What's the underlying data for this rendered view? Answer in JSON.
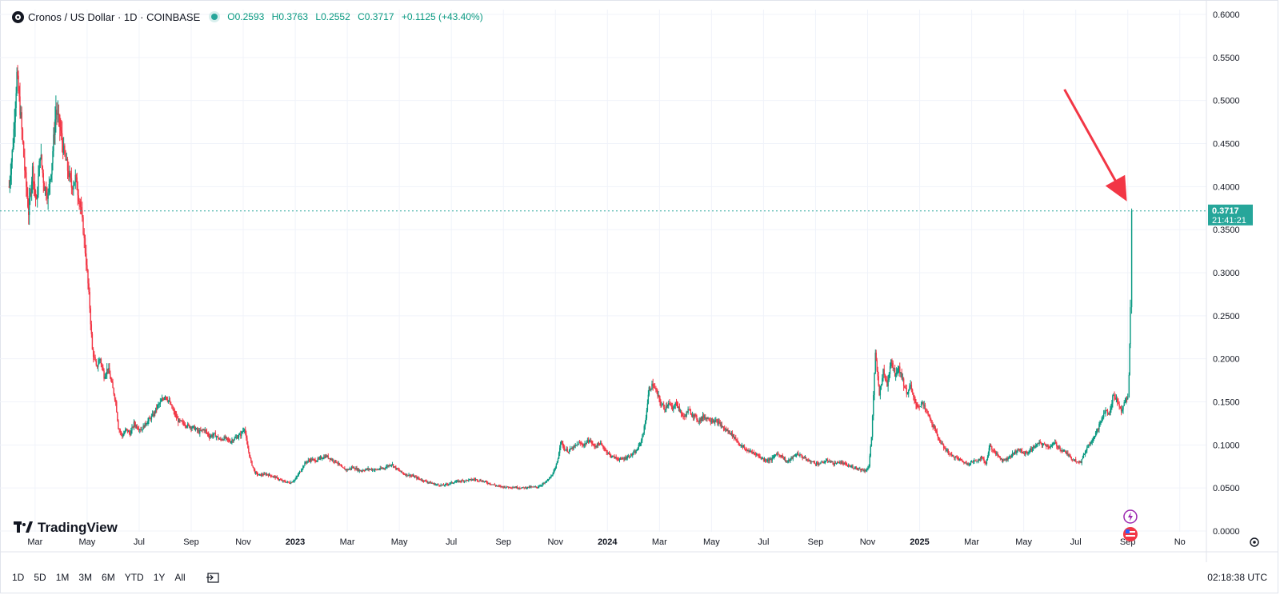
{
  "legend": {
    "symbol": "Cronos / US Dollar · 1D · COINBASE",
    "open": "O0.2593",
    "high": "H0.3763",
    "low": "L0.2552",
    "close": "C0.3717",
    "change": "+0.1125 (+43.40%)"
  },
  "price_label": {
    "value": "0.3717",
    "countdown": "21:41:21"
  },
  "logo": "TradingView",
  "ranges": [
    "1D",
    "5D",
    "1M",
    "3M",
    "6M",
    "YTD",
    "1Y",
    "All"
  ],
  "clock": "02:18:38 UTC",
  "colors": {
    "up": "#089981",
    "down": "#f23645",
    "price_line": "#26a69a",
    "arrow": "#f23645"
  },
  "chart_data": {
    "type": "candlestick",
    "title": "Cronos / US Dollar · 1D · COINBASE",
    "y_ticks": [
      "0.0000",
      "0.0500",
      "0.1000",
      "0.1500",
      "0.2000",
      "0.2500",
      "0.3000",
      "0.3500",
      "0.4000",
      "0.4500",
      "0.5000",
      "0.5500",
      "0.6000"
    ],
    "ylim": [
      0,
      0.6
    ],
    "x_ticks": [
      {
        "label": "Mar",
        "t": 1.0
      },
      {
        "label": "May",
        "t": 3.0
      },
      {
        "label": "Jul",
        "t": 5.0
      },
      {
        "label": "Sep",
        "t": 7.0
      },
      {
        "label": "Nov",
        "t": 9.0
      },
      {
        "label": "2023",
        "t": 11.0
      },
      {
        "label": "Mar",
        "t": 13.0
      },
      {
        "label": "May",
        "t": 15.0
      },
      {
        "label": "Jul",
        "t": 17.0
      },
      {
        "label": "Sep",
        "t": 19.0
      },
      {
        "label": "Nov",
        "t": 21.0
      },
      {
        "label": "2024",
        "t": 23.0
      },
      {
        "label": "Mar",
        "t": 25.0
      },
      {
        "label": "May",
        "t": 27.0
      },
      {
        "label": "Jul",
        "t": 29.0
      },
      {
        "label": "Sep",
        "t": 31.0
      },
      {
        "label": "Nov",
        "t": 33.0
      },
      {
        "label": "2025",
        "t": 35.0
      },
      {
        "label": "Mar",
        "t": 37.0
      },
      {
        "label": "May",
        "t": 39.0
      },
      {
        "label": "Jul",
        "t": 41.0
      },
      {
        "label": "Sep",
        "t": 43.0
      },
      {
        "label": "No",
        "t": 45.0
      }
    ],
    "time_axis": "months since 2022-01",
    "xlim": [
      0.02,
      45.1
    ],
    "series": [
      {
        "name": "CRO/USD close",
        "points": [
          [
            0.0,
            0.4
          ],
          [
            0.15,
            0.45
          ],
          [
            0.3,
            0.53
          ],
          [
            0.45,
            0.48
          ],
          [
            0.6,
            0.42
          ],
          [
            0.75,
            0.37
          ],
          [
            0.9,
            0.42
          ],
          [
            1.05,
            0.38
          ],
          [
            1.2,
            0.44
          ],
          [
            1.35,
            0.4
          ],
          [
            1.5,
            0.39
          ],
          [
            1.65,
            0.43
          ],
          [
            1.8,
            0.49
          ],
          [
            1.95,
            0.47
          ],
          [
            2.1,
            0.44
          ],
          [
            2.25,
            0.42
          ],
          [
            2.4,
            0.4
          ],
          [
            2.55,
            0.41
          ],
          [
            2.7,
            0.385
          ],
          [
            2.85,
            0.35
          ],
          [
            3.0,
            0.3
          ],
          [
            3.1,
            0.26
          ],
          [
            3.2,
            0.21
          ],
          [
            3.35,
            0.19
          ],
          [
            3.5,
            0.2
          ],
          [
            3.65,
            0.18
          ],
          [
            3.8,
            0.19
          ],
          [
            3.95,
            0.17
          ],
          [
            4.1,
            0.15
          ],
          [
            4.2,
            0.12
          ],
          [
            4.35,
            0.11
          ],
          [
            4.5,
            0.118
          ],
          [
            4.65,
            0.113
          ],
          [
            4.8,
            0.125
          ],
          [
            4.95,
            0.12
          ],
          [
            5.1,
            0.118
          ],
          [
            5.25,
            0.125
          ],
          [
            5.4,
            0.13
          ],
          [
            5.55,
            0.135
          ],
          [
            5.7,
            0.145
          ],
          [
            5.85,
            0.15
          ],
          [
            6.0,
            0.158
          ],
          [
            6.15,
            0.15
          ],
          [
            6.3,
            0.14
          ],
          [
            6.5,
            0.128
          ],
          [
            6.7,
            0.125
          ],
          [
            6.9,
            0.122
          ],
          [
            7.1,
            0.12
          ],
          [
            7.3,
            0.115
          ],
          [
            7.5,
            0.118
          ],
          [
            7.7,
            0.11
          ],
          [
            7.9,
            0.112
          ],
          [
            8.1,
            0.106
          ],
          [
            8.3,
            0.108
          ],
          [
            8.5,
            0.104
          ],
          [
            8.7,
            0.108
          ],
          [
            8.9,
            0.112
          ],
          [
            9.05,
            0.12
          ],
          [
            9.15,
            0.1
          ],
          [
            9.3,
            0.08
          ],
          [
            9.45,
            0.068
          ],
          [
            9.6,
            0.065
          ],
          [
            9.9,
            0.066
          ],
          [
            10.2,
            0.063
          ],
          [
            10.5,
            0.058
          ],
          [
            10.8,
            0.056
          ],
          [
            11.0,
            0.06
          ],
          [
            11.2,
            0.07
          ],
          [
            11.4,
            0.08
          ],
          [
            11.6,
            0.083
          ],
          [
            11.8,
            0.082
          ],
          [
            12.0,
            0.085
          ],
          [
            12.2,
            0.087
          ],
          [
            12.4,
            0.083
          ],
          [
            12.6,
            0.08
          ],
          [
            12.8,
            0.073
          ],
          [
            13.0,
            0.071
          ],
          [
            13.2,
            0.074
          ],
          [
            13.5,
            0.07
          ],
          [
            13.8,
            0.072
          ],
          [
            14.1,
            0.071
          ],
          [
            14.4,
            0.073
          ],
          [
            14.7,
            0.078
          ],
          [
            14.9,
            0.072
          ],
          [
            15.2,
            0.066
          ],
          [
            15.5,
            0.064
          ],
          [
            15.8,
            0.06
          ],
          [
            16.1,
            0.057
          ],
          [
            16.4,
            0.054
          ],
          [
            16.7,
            0.053
          ],
          [
            17.0,
            0.056
          ],
          [
            17.3,
            0.058
          ],
          [
            17.6,
            0.059
          ],
          [
            17.9,
            0.06
          ],
          [
            18.2,
            0.058
          ],
          [
            18.5,
            0.055
          ],
          [
            18.8,
            0.052
          ],
          [
            19.1,
            0.051
          ],
          [
            19.4,
            0.051
          ],
          [
            19.7,
            0.05
          ],
          [
            20.0,
            0.051
          ],
          [
            20.3,
            0.051
          ],
          [
            20.6,
            0.056
          ],
          [
            20.8,
            0.062
          ],
          [
            21.0,
            0.072
          ],
          [
            21.1,
            0.085
          ],
          [
            21.2,
            0.105
          ],
          [
            21.35,
            0.095
          ],
          [
            21.5,
            0.093
          ],
          [
            21.7,
            0.097
          ],
          [
            21.9,
            0.102
          ],
          [
            22.1,
            0.1
          ],
          [
            22.3,
            0.106
          ],
          [
            22.5,
            0.098
          ],
          [
            22.7,
            0.102
          ],
          [
            22.9,
            0.095
          ],
          [
            23.1,
            0.088
          ],
          [
            23.3,
            0.085
          ],
          [
            23.5,
            0.083
          ],
          [
            23.7,
            0.085
          ],
          [
            23.9,
            0.088
          ],
          [
            24.1,
            0.092
          ],
          [
            24.3,
            0.105
          ],
          [
            24.45,
            0.125
          ],
          [
            24.6,
            0.165
          ],
          [
            24.75,
            0.17
          ],
          [
            24.9,
            0.16
          ],
          [
            25.05,
            0.148
          ],
          [
            25.2,
            0.142
          ],
          [
            25.35,
            0.15
          ],
          [
            25.5,
            0.14
          ],
          [
            25.65,
            0.15
          ],
          [
            25.8,
            0.138
          ],
          [
            25.95,
            0.132
          ],
          [
            26.1,
            0.14
          ],
          [
            26.3,
            0.135
          ],
          [
            26.5,
            0.128
          ],
          [
            26.7,
            0.133
          ],
          [
            26.9,
            0.13
          ],
          [
            27.1,
            0.128
          ],
          [
            27.3,
            0.125
          ],
          [
            27.5,
            0.118
          ],
          [
            27.7,
            0.115
          ],
          [
            27.9,
            0.108
          ],
          [
            28.1,
            0.1
          ],
          [
            28.3,
            0.095
          ],
          [
            28.5,
            0.092
          ],
          [
            28.7,
            0.09
          ],
          [
            28.9,
            0.085
          ],
          [
            29.1,
            0.082
          ],
          [
            29.3,
            0.083
          ],
          [
            29.5,
            0.09
          ],
          [
            29.7,
            0.087
          ],
          [
            29.9,
            0.08
          ],
          [
            30.1,
            0.085
          ],
          [
            30.3,
            0.09
          ],
          [
            30.5,
            0.086
          ],
          [
            30.7,
            0.082
          ],
          [
            30.9,
            0.08
          ],
          [
            31.1,
            0.078
          ],
          [
            31.3,
            0.08
          ],
          [
            31.5,
            0.082
          ],
          [
            31.7,
            0.078
          ],
          [
            31.9,
            0.08
          ],
          [
            32.1,
            0.078
          ],
          [
            32.3,
            0.075
          ],
          [
            32.5,
            0.074
          ],
          [
            32.7,
            0.072
          ],
          [
            32.9,
            0.07
          ],
          [
            33.05,
            0.075
          ],
          [
            33.15,
            0.11
          ],
          [
            33.3,
            0.205
          ],
          [
            33.45,
            0.16
          ],
          [
            33.6,
            0.185
          ],
          [
            33.75,
            0.17
          ],
          [
            33.9,
            0.2
          ],
          [
            34.05,
            0.182
          ],
          [
            34.2,
            0.19
          ],
          [
            34.35,
            0.175
          ],
          [
            34.5,
            0.16
          ],
          [
            34.65,
            0.168
          ],
          [
            34.8,
            0.15
          ],
          [
            34.95,
            0.145
          ],
          [
            35.1,
            0.148
          ],
          [
            35.25,
            0.14
          ],
          [
            35.4,
            0.13
          ],
          [
            35.55,
            0.12
          ],
          [
            35.7,
            0.11
          ],
          [
            35.85,
            0.1
          ],
          [
            36.0,
            0.095
          ],
          [
            36.2,
            0.088
          ],
          [
            36.4,
            0.085
          ],
          [
            36.6,
            0.082
          ],
          [
            36.8,
            0.078
          ],
          [
            37.0,
            0.08
          ],
          [
            37.2,
            0.082
          ],
          [
            37.4,
            0.085
          ],
          [
            37.55,
            0.078
          ],
          [
            37.7,
            0.1
          ],
          [
            37.85,
            0.092
          ],
          [
            38.0,
            0.088
          ],
          [
            38.2,
            0.082
          ],
          [
            38.4,
            0.085
          ],
          [
            38.6,
            0.09
          ],
          [
            38.8,
            0.095
          ],
          [
            39.0,
            0.09
          ],
          [
            39.2,
            0.092
          ],
          [
            39.4,
            0.098
          ],
          [
            39.6,
            0.102
          ],
          [
            39.8,
            0.1
          ],
          [
            40.0,
            0.098
          ],
          [
            40.2,
            0.102
          ],
          [
            40.4,
            0.095
          ],
          [
            40.6,
            0.092
          ],
          [
            40.8,
            0.085
          ],
          [
            41.0,
            0.082
          ],
          [
            41.2,
            0.08
          ],
          [
            41.4,
            0.095
          ],
          [
            41.6,
            0.105
          ],
          [
            41.8,
            0.115
          ],
          [
            42.0,
            0.13
          ],
          [
            42.15,
            0.14
          ],
          [
            42.3,
            0.135
          ],
          [
            42.45,
            0.16
          ],
          [
            42.6,
            0.15
          ],
          [
            42.75,
            0.14
          ],
          [
            42.9,
            0.15
          ],
          [
            43.0,
            0.155
          ],
          [
            43.05,
            0.18
          ],
          [
            43.1,
            0.259
          ],
          [
            43.15,
            0.3717
          ]
        ]
      }
    ]
  }
}
